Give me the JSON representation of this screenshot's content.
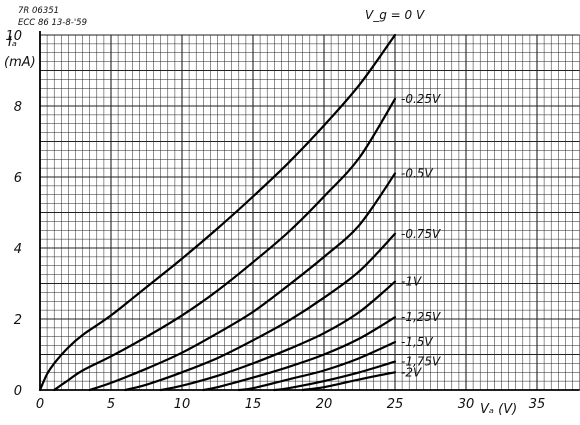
{
  "chart_data": {
    "type": "line",
    "notes": [
      "7R 06351",
      "ECC 86 13-8-'59"
    ],
    "xlabel": "Vₐ (V)",
    "ylabel_symbol": "Iₐ",
    "ylabel_unit": "(mA)",
    "legend_header": "V_g = 0 V",
    "xlim": [
      0,
      38
    ],
    "ylim": [
      0,
      10
    ],
    "x_ticks": [
      "0",
      "5",
      "10",
      "15",
      "20",
      "25",
      "30",
      "35"
    ],
    "y_ticks": [
      "0",
      "2",
      "4",
      "6",
      "8",
      "10"
    ],
    "grid": true,
    "series": [
      {
        "name": "0 V",
        "label": "V_g = 0 V",
        "x": [
          0,
          0.5,
          1,
          2,
          3,
          5,
          7.5,
          10,
          12.5,
          15,
          17.5,
          20,
          22.5,
          25
        ],
        "y": [
          0,
          0.45,
          0.75,
          1.2,
          1.55,
          2.1,
          2.9,
          3.7,
          4.55,
          5.45,
          6.4,
          7.45,
          8.6,
          10.0
        ]
      },
      {
        "name": "-0.25 V",
        "label": "-0.25V",
        "x": [
          1,
          2,
          3,
          5,
          7.5,
          10,
          12.5,
          15,
          17.5,
          20,
          22.5,
          25
        ],
        "y": [
          0,
          0.28,
          0.55,
          0.95,
          1.5,
          2.1,
          2.8,
          3.6,
          4.45,
          5.45,
          6.55,
          8.2
        ]
      },
      {
        "name": "-0.5 V",
        "label": "-0.5V",
        "x": [
          3.5,
          5,
          7.5,
          10,
          12.5,
          15,
          17.5,
          20,
          22.5,
          25
        ],
        "y": [
          0,
          0.2,
          0.6,
          1.05,
          1.6,
          2.2,
          2.95,
          3.75,
          4.65,
          6.1
        ]
      },
      {
        "name": "-0.75 V",
        "label": "-0.75V",
        "x": [
          6,
          7.5,
          10,
          12.5,
          15,
          17.5,
          20,
          22.5,
          25
        ],
        "y": [
          0,
          0.15,
          0.5,
          0.9,
          1.4,
          1.95,
          2.6,
          3.35,
          4.4
        ]
      },
      {
        "name": "-1 V",
        "label": "-1V",
        "x": [
          8.5,
          10,
          12.5,
          15,
          17.5,
          20,
          22.5,
          25
        ],
        "y": [
          0,
          0.12,
          0.4,
          0.75,
          1.15,
          1.6,
          2.2,
          3.05
        ]
      },
      {
        "name": "-1.25 V",
        "label": "-1,25V",
        "x": [
          11.5,
          12.5,
          15,
          17.5,
          20,
          22.5,
          25
        ],
        "y": [
          0,
          0.08,
          0.35,
          0.65,
          1.0,
          1.45,
          2.05
        ]
      },
      {
        "name": "-1.5 V",
        "label": "-1,5V",
        "x": [
          14,
          15,
          17.5,
          20,
          22.5,
          25
        ],
        "y": [
          0,
          0.05,
          0.3,
          0.55,
          0.9,
          1.35
        ]
      },
      {
        "name": "-1.75 V",
        "label": "-1,75V",
        "x": [
          16.5,
          17.5,
          20,
          22.5,
          25
        ],
        "y": [
          0,
          0.05,
          0.25,
          0.5,
          0.8
        ]
      },
      {
        "name": "-2 V",
        "label": "-2V",
        "x": [
          18.5,
          20,
          22.5,
          25
        ],
        "y": [
          0,
          0.08,
          0.3,
          0.5
        ]
      }
    ]
  }
}
